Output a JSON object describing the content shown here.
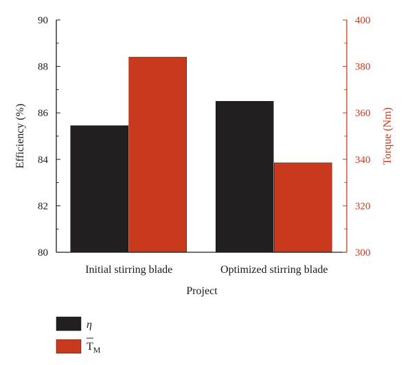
{
  "chart_data": {
    "type": "bar",
    "categories": [
      "Initial stirring blade",
      "Optimized stirring blade"
    ],
    "xlabel": "Project",
    "ylabel_left": "Efficiency (%)",
    "ylabel_right": "Torque (Nm)",
    "ylim_left": [
      80,
      90
    ],
    "ylim_right": [
      300,
      400
    ],
    "yticks_left": [
      80,
      82,
      84,
      86,
      88,
      90
    ],
    "yticks_right": [
      300,
      320,
      340,
      360,
      380,
      400
    ],
    "grid": false,
    "legend_position": "bottom-left",
    "series": [
      {
        "name": "η",
        "axis": "left",
        "color": "#231f20",
        "values": [
          85.45,
          86.5
        ]
      },
      {
        "name": "T̄M",
        "axis": "right",
        "color": "#c8391d",
        "values": [
          384,
          338.5
        ]
      }
    ]
  },
  "colors": {
    "left_axis": "#1a1a1a",
    "right_axis": "#c8391d"
  }
}
